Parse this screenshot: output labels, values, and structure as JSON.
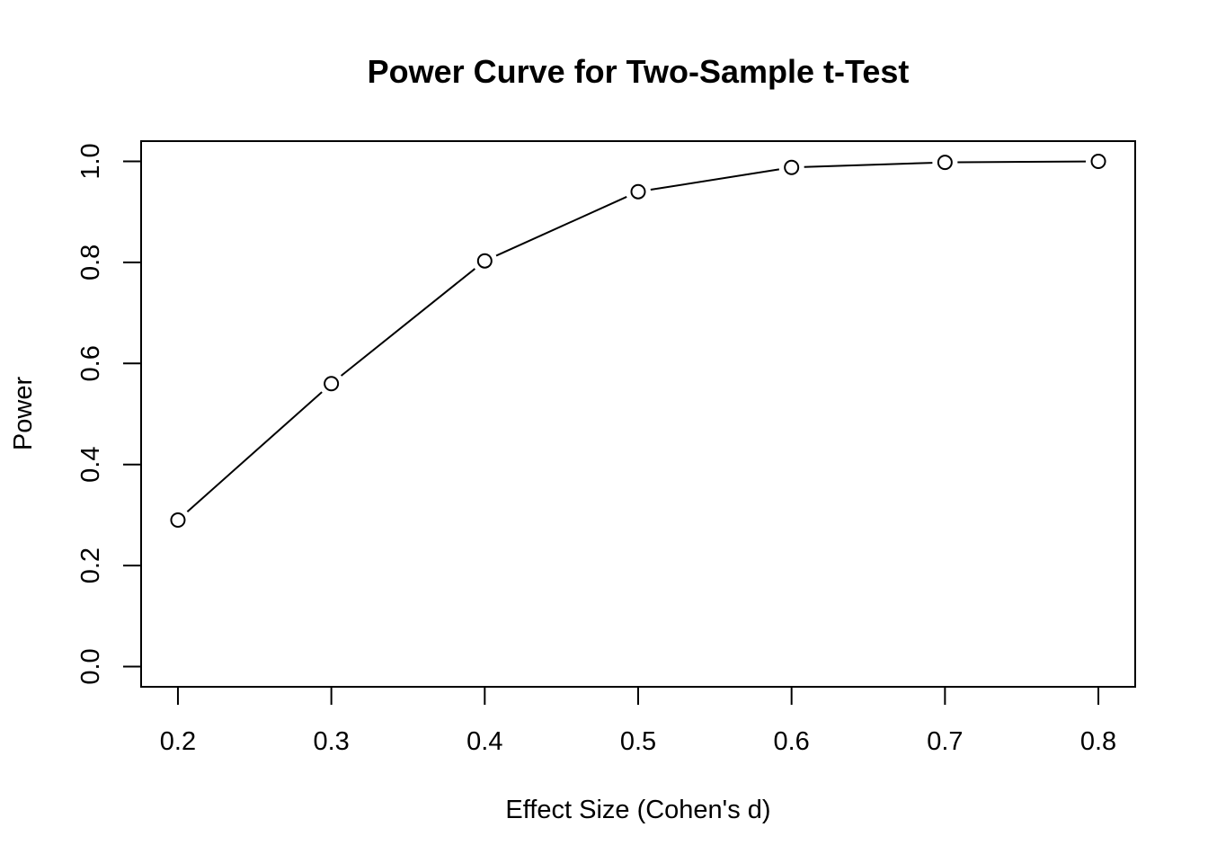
{
  "chart_data": {
    "type": "line",
    "title": "Power Curve for Two-Sample t-Test",
    "xlabel": "Effect Size (Cohen's d)",
    "ylabel": "Power",
    "x": [
      0.2,
      0.3,
      0.4,
      0.5,
      0.6,
      0.7,
      0.8
    ],
    "series": [
      {
        "name": "Power",
        "values": [
          0.29,
          0.56,
          0.803,
          0.94,
          0.988,
          0.998,
          1.0
        ]
      }
    ],
    "xlim": [
      0.176,
      0.824
    ],
    "ylim": [
      -0.04,
      1.04
    ],
    "x_ticks": [
      0.2,
      0.3,
      0.4,
      0.5,
      0.6,
      0.7,
      0.8
    ],
    "x_tick_labels": [
      "0.2",
      "0.3",
      "0.4",
      "0.5",
      "0.6",
      "0.7",
      "0.8"
    ],
    "y_ticks": [
      0.0,
      0.2,
      0.4,
      0.6,
      0.8,
      1.0
    ],
    "y_tick_labels": [
      "0.0",
      "0.2",
      "0.4",
      "0.6",
      "0.8",
      "1.0"
    ],
    "marker": "open-circle",
    "line_color": "#000000",
    "grid": false,
    "legend": "none"
  }
}
